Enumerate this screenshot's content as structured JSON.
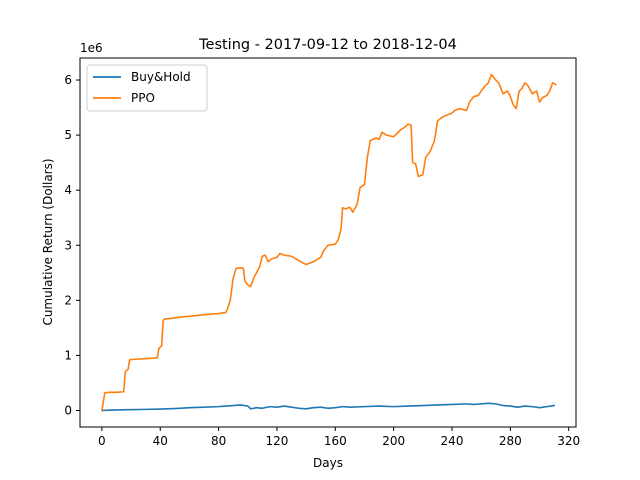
{
  "chart_data": {
    "type": "line",
    "title": "Testing - 2017-09-12 to 2018-12-04",
    "xlabel": "Days",
    "ylabel": "Cumulative Return (Dollars)",
    "y_offset_label": "1e6",
    "xlim": [
      -15,
      325
    ],
    "ylim": [
      -0.3,
      6.4
    ],
    "x_ticks": [
      0,
      40,
      80,
      120,
      160,
      200,
      240,
      280,
      320
    ],
    "x_tick_labels": [
      "0",
      "40",
      "80",
      "120",
      "160",
      "200",
      "240",
      "280",
      "320"
    ],
    "y_ticks": [
      0,
      1,
      2,
      3,
      4,
      5,
      6
    ],
    "y_tick_labels": [
      "0",
      "1",
      "2",
      "3",
      "4",
      "5",
      "6"
    ],
    "grid": false,
    "legend_position": "upper-left",
    "series": [
      {
        "name": "Buy&Hold",
        "color": "#1f77b4",
        "points": [
          [
            0,
            0.0
          ],
          [
            10,
            0.01
          ],
          [
            20,
            0.015
          ],
          [
            30,
            0.02
          ],
          [
            40,
            0.025
          ],
          [
            50,
            0.035
          ],
          [
            60,
            0.05
          ],
          [
            70,
            0.06
          ],
          [
            80,
            0.07
          ],
          [
            85,
            0.08
          ],
          [
            90,
            0.09
          ],
          [
            95,
            0.1
          ],
          [
            100,
            0.08
          ],
          [
            102,
            0.03
          ],
          [
            106,
            0.05
          ],
          [
            110,
            0.04
          ],
          [
            115,
            0.07
          ],
          [
            120,
            0.06
          ],
          [
            125,
            0.08
          ],
          [
            130,
            0.06
          ],
          [
            135,
            0.04
          ],
          [
            140,
            0.03
          ],
          [
            145,
            0.05
          ],
          [
            150,
            0.06
          ],
          [
            155,
            0.04
          ],
          [
            160,
            0.05
          ],
          [
            165,
            0.07
          ],
          [
            170,
            0.06
          ],
          [
            180,
            0.07
          ],
          [
            190,
            0.08
          ],
          [
            200,
            0.07
          ],
          [
            210,
            0.08
          ],
          [
            220,
            0.09
          ],
          [
            230,
            0.1
          ],
          [
            240,
            0.11
          ],
          [
            250,
            0.12
          ],
          [
            255,
            0.11
          ],
          [
            260,
            0.12
          ],
          [
            265,
            0.13
          ],
          [
            270,
            0.12
          ],
          [
            275,
            0.09
          ],
          [
            280,
            0.08
          ],
          [
            285,
            0.06
          ],
          [
            290,
            0.08
          ],
          [
            295,
            0.07
          ],
          [
            300,
            0.05
          ],
          [
            305,
            0.07
          ],
          [
            310,
            0.09
          ]
        ]
      },
      {
        "name": "PPO",
        "color": "#ff7f0e",
        "points": [
          [
            0,
            0.0
          ],
          [
            2,
            0.32
          ],
          [
            5,
            0.33
          ],
          [
            10,
            0.33
          ],
          [
            15,
            0.34
          ],
          [
            16,
            0.7
          ],
          [
            18,
            0.75
          ],
          [
            19,
            0.92
          ],
          [
            22,
            0.93
          ],
          [
            30,
            0.94
          ],
          [
            35,
            0.95
          ],
          [
            38,
            0.96
          ],
          [
            39,
            1.12
          ],
          [
            41,
            1.18
          ],
          [
            42,
            1.63
          ],
          [
            43,
            1.66
          ],
          [
            50,
            1.68
          ],
          [
            55,
            1.7
          ],
          [
            60,
            1.71
          ],
          [
            70,
            1.74
          ],
          [
            80,
            1.76
          ],
          [
            85,
            1.78
          ],
          [
            86,
            1.84
          ],
          [
            88,
            2.0
          ],
          [
            90,
            2.4
          ],
          [
            92,
            2.58
          ],
          [
            95,
            2.59
          ],
          [
            97,
            2.58
          ],
          [
            98,
            2.35
          ],
          [
            100,
            2.28
          ],
          [
            102,
            2.25
          ],
          [
            104,
            2.4
          ],
          [
            106,
            2.5
          ],
          [
            108,
            2.6
          ],
          [
            110,
            2.8
          ],
          [
            112,
            2.82
          ],
          [
            114,
            2.7
          ],
          [
            116,
            2.75
          ],
          [
            120,
            2.78
          ],
          [
            122,
            2.85
          ],
          [
            125,
            2.82
          ],
          [
            130,
            2.8
          ],
          [
            135,
            2.72
          ],
          [
            140,
            2.65
          ],
          [
            145,
            2.7
          ],
          [
            150,
            2.78
          ],
          [
            152,
            2.9
          ],
          [
            155,
            3.0
          ],
          [
            160,
            3.02
          ],
          [
            162,
            3.1
          ],
          [
            164,
            3.3
          ],
          [
            165,
            3.68
          ],
          [
            167,
            3.66
          ],
          [
            170,
            3.69
          ],
          [
            172,
            3.6
          ],
          [
            175,
            3.75
          ],
          [
            177,
            4.05
          ],
          [
            180,
            4.1
          ],
          [
            182,
            4.6
          ],
          [
            184,
            4.9
          ],
          [
            188,
            4.95
          ],
          [
            190,
            4.92
          ],
          [
            192,
            5.05
          ],
          [
            195,
            5.0
          ],
          [
            200,
            4.97
          ],
          [
            202,
            5.02
          ],
          [
            205,
            5.1
          ],
          [
            208,
            5.15
          ],
          [
            210,
            5.2
          ],
          [
            212,
            5.18
          ],
          [
            213,
            4.5
          ],
          [
            215,
            4.48
          ],
          [
            217,
            4.25
          ],
          [
            220,
            4.28
          ],
          [
            222,
            4.6
          ],
          [
            225,
            4.7
          ],
          [
            228,
            4.9
          ],
          [
            230,
            5.25
          ],
          [
            232,
            5.3
          ],
          [
            235,
            5.35
          ],
          [
            240,
            5.4
          ],
          [
            242,
            5.45
          ],
          [
            245,
            5.48
          ],
          [
            250,
            5.45
          ],
          [
            252,
            5.6
          ],
          [
            255,
            5.7
          ],
          [
            258,
            5.72
          ],
          [
            260,
            5.8
          ],
          [
            263,
            5.9
          ],
          [
            265,
            5.95
          ],
          [
            267,
            6.1
          ],
          [
            270,
            6.0
          ],
          [
            272,
            5.95
          ],
          [
            275,
            5.75
          ],
          [
            278,
            5.8
          ],
          [
            280,
            5.7
          ],
          [
            282,
            5.55
          ],
          [
            284,
            5.48
          ],
          [
            286,
            5.8
          ],
          [
            288,
            5.85
          ],
          [
            290,
            5.95
          ],
          [
            292,
            5.9
          ],
          [
            295,
            5.75
          ],
          [
            298,
            5.8
          ],
          [
            300,
            5.6
          ],
          [
            302,
            5.68
          ],
          [
            305,
            5.72
          ],
          [
            307,
            5.8
          ],
          [
            309,
            5.95
          ],
          [
            311,
            5.92
          ]
        ]
      }
    ]
  }
}
